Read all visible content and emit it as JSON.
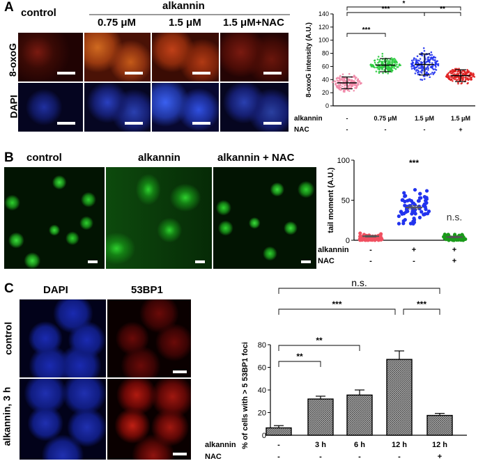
{
  "panel_a": {
    "letter": "A",
    "control_label": "control",
    "group_label": "alkannin",
    "conc_labels": [
      "0.75 μM",
      "1.5 μM",
      "1.5 μM+NAC"
    ],
    "row_labels": [
      "8-oxoG",
      "DAPI"
    ]
  },
  "panel_b": {
    "letter": "B",
    "col_labels": [
      "control",
      "alkannin",
      "alkannin + NAC"
    ]
  },
  "panel_c": {
    "letter": "C",
    "col_labels": [
      "DAPI",
      "53BP1"
    ],
    "row_labels": [
      "control",
      "alkannin, 3 h"
    ]
  },
  "chart_data": [
    {
      "type": "scatter",
      "panel": "A",
      "ylabel": "8-oxoG intensity (A.U.)",
      "ylim": [
        0,
        140
      ],
      "yticks": [
        0,
        20,
        40,
        60,
        80,
        100,
        120,
        140
      ],
      "groups": [
        {
          "color": "#f08aa8",
          "mean": 35,
          "sd": 9
        },
        {
          "color": "#2ecc40",
          "mean": 62,
          "sd": 10
        },
        {
          "color": "#2233ee",
          "mean": 63,
          "sd": 16
        },
        {
          "color": "#e02020",
          "mean": 46,
          "sd": 9
        }
      ],
      "row_labels": [
        "alkannin",
        "NAC"
      ],
      "row_values": [
        [
          "-",
          "0.75 μM",
          "1.5 μM",
          "1.5 μM"
        ],
        [
          "-",
          "-",
          "-",
          "+"
        ]
      ],
      "significance": [
        {
          "from": 0,
          "to": 1,
          "label": "***"
        },
        {
          "from": 0,
          "to": 2,
          "label": "***"
        },
        {
          "from": 2,
          "to": 3,
          "label": "**"
        },
        {
          "from": 0,
          "to": 3,
          "label": "*"
        }
      ]
    },
    {
      "type": "scatter",
      "panel": "B",
      "ylabel": "tail moment (A.U.)",
      "ylim": [
        0,
        100
      ],
      "yticks": [
        0,
        50,
        100
      ],
      "groups": [
        {
          "color": "#f05060",
          "mean": 5,
          "sem": 1
        },
        {
          "color": "#2233ee",
          "mean": 41,
          "sem": 2
        },
        {
          "color": "#1a9a1a",
          "mean": 4,
          "sem": 1
        }
      ],
      "annotations": [
        "",
        "***",
        "n.s."
      ],
      "row_labels": [
        "alkannin",
        "NAC"
      ],
      "row_values": [
        [
          "-",
          "+",
          "+"
        ],
        [
          "-",
          "-",
          "+"
        ]
      ]
    },
    {
      "type": "bar",
      "panel": "C",
      "ylabel": "% of cells with > 5 53BP1 foci",
      "ylim": [
        0,
        80
      ],
      "yticks": [
        0,
        20,
        40,
        60,
        80
      ],
      "values": [
        6.5,
        32,
        35.5,
        67,
        17.5
      ],
      "errors": [
        2,
        2.5,
        4.5,
        7.5,
        1.8
      ],
      "row_labels": [
        "alkannin",
        "NAC"
      ],
      "row_values": [
        [
          "-",
          "3 h",
          "6 h",
          "12 h",
          "12 h"
        ],
        [
          "-",
          "-",
          "-",
          "-",
          "+"
        ]
      ],
      "significance": [
        {
          "from": 0,
          "to": 1,
          "label": "**"
        },
        {
          "from": 0,
          "to": 2,
          "label": "**"
        },
        {
          "from": 0,
          "to": 3,
          "label": "***"
        },
        {
          "from": 3,
          "to": 4,
          "label": "***"
        },
        {
          "from": 0,
          "to": 4,
          "label": "n.s."
        }
      ]
    }
  ]
}
